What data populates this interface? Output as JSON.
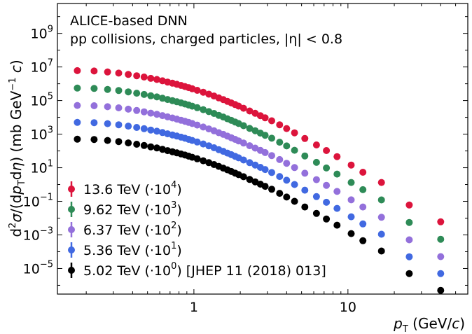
{
  "chart_data": {
    "type": "scatter",
    "annotation_lines": [
      "ALICE-based DNN",
      "pp collisions, charged particles, |η| < 0.8"
    ],
    "xlabel": "p_T (GeV/c)",
    "ylabel": "d²σ/(dp_T dη) (mb GeV⁻¹ c)",
    "xscale": "log",
    "yscale": "log",
    "xlim": [
      0.13,
      60
    ],
    "ylim": [
      3e-07,
      60000000000.0
    ],
    "x_major_ticks": [
      1,
      10
    ],
    "x_tick_labels": [
      "1",
      "10"
    ],
    "y_major_ticks": [
      1e-05,
      0.001,
      0.1,
      10.0,
      1000.0,
      100000.0,
      10000000.0,
      1000000000.0
    ],
    "y_tick_labels": [
      {
        "base": "10",
        "exp": "−5"
      },
      {
        "base": "10",
        "exp": "−3"
      },
      {
        "base": "10",
        "exp": "−1"
      },
      {
        "base": "10",
        "exp": "1"
      },
      {
        "base": "10",
        "exp": "3"
      },
      {
        "base": "10",
        "exp": "5"
      },
      {
        "base": "10",
        "exp": "7"
      },
      {
        "base": "10",
        "exp": "9"
      }
    ],
    "grid": false,
    "legend_position": "lower-left",
    "x": [
      0.175,
      0.225,
      0.275,
      0.325,
      0.375,
      0.425,
      0.475,
      0.525,
      0.575,
      0.625,
      0.675,
      0.725,
      0.775,
      0.825,
      0.875,
      0.925,
      0.975,
      1.05,
      1.15,
      1.25,
      1.35,
      1.45,
      1.55,
      1.65,
      1.75,
      1.85,
      1.95,
      2.1,
      2.3,
      2.5,
      2.7,
      2.9,
      3.2,
      3.6,
      4.0,
      4.5,
      5.25,
      6.25,
      7.25,
      8.5,
      10.5,
      12.5,
      16.5,
      25.0,
      40.0
    ],
    "base_values": [
      500,
      480,
      420,
      360,
      300,
      250,
      210,
      175,
      150,
      125,
      105,
      90,
      77,
      66,
      57,
      49,
      42,
      34,
      26,
      20,
      15.5,
      12,
      9.5,
      7.5,
      6.0,
      4.8,
      3.9,
      2.9,
      2.0,
      1.45,
      1.05,
      0.78,
      0.52,
      0.3,
      0.18,
      0.1,
      0.046,
      0.019,
      0.0088,
      0.0038,
      0.0012,
      0.00045,
      0.00011,
      5e-06,
      5e-07
    ],
    "series": [
      {
        "name": "13.6 TeV",
        "scale_exp": "4",
        "color": "#dc143c",
        "scale": 10000,
        "energy_factor": 1.2
      },
      {
        "name": "9.62 TeV",
        "scale_exp": "3",
        "color": "#2e8b57",
        "scale": 1000,
        "energy_factor": 1.1
      },
      {
        "name": "6.37 TeV",
        "scale_exp": "2",
        "color": "#9370db",
        "scale": 100,
        "energy_factor": 1.02
      },
      {
        "name": "5.36 TeV",
        "scale_exp": "1",
        "color": "#4169e1",
        "scale": 10,
        "energy_factor": 1.0
      },
      {
        "name": "5.02 TeV",
        "scale_exp": "0",
        "color": "#000000",
        "scale": 1,
        "energy_factor": 1.0,
        "ref": " [JHEP 11 (2018) 013]"
      }
    ]
  }
}
